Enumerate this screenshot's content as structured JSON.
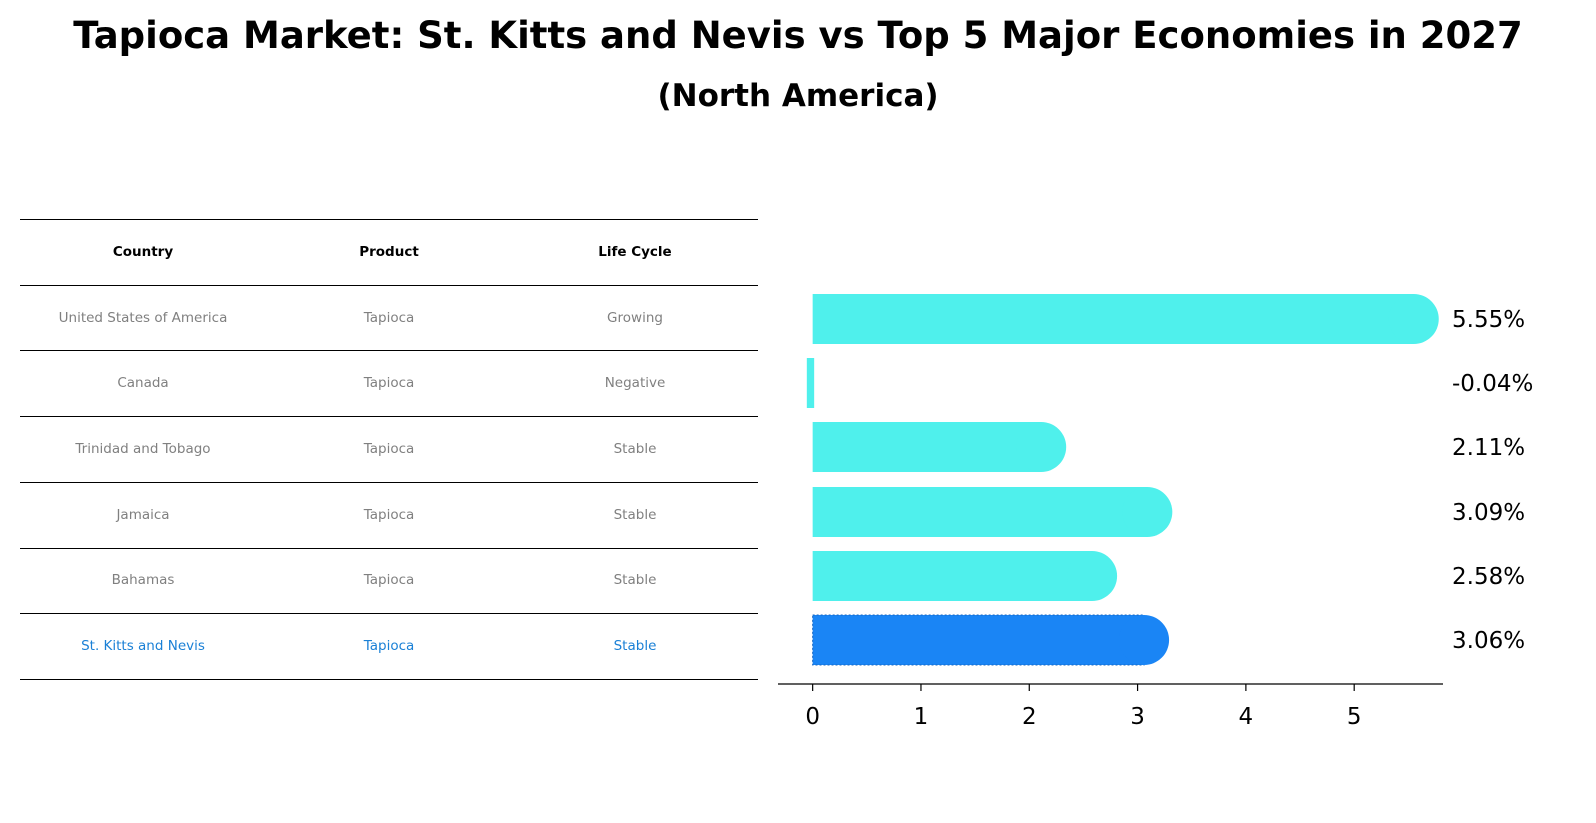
{
  "title": "Tapioca Market: St. Kitts and Nevis vs Top 5 Major Economies in 2027",
  "subtitle": "(North America)",
  "table": {
    "headers": [
      "Country",
      "Product",
      "Life Cycle"
    ],
    "rows": [
      [
        "United States of America",
        "Tapioca",
        "Growing"
      ],
      [
        "Canada",
        "Tapioca",
        "Negative"
      ],
      [
        "Trinidad and Tobago",
        "Tapioca",
        "Stable"
      ],
      [
        "Jamaica",
        "Tapioca",
        "Stable"
      ],
      [
        "Bahamas",
        "Tapioca",
        "Stable"
      ],
      [
        "St. Kitts and Nevis",
        "Tapioca",
        "Stable"
      ]
    ],
    "highlight_row": 5,
    "text_color": "#808080",
    "highlight_color": "#1a80d6"
  },
  "chart_data": {
    "type": "bar",
    "orientation": "horizontal",
    "categories": [
      "United States of America",
      "Canada",
      "Trinidad and Tobago",
      "Jamaica",
      "Bahamas",
      "St. Kitts and Nevis"
    ],
    "values": [
      5.55,
      -0.04,
      2.11,
      3.09,
      2.58,
      3.06
    ],
    "labels": [
      "5.55%",
      "-0.04%",
      "2.11%",
      "3.09%",
      "2.58%",
      "3.06%"
    ],
    "xticks": [
      0,
      1,
      2,
      3,
      4,
      5
    ],
    "xlim": [
      -0.32,
      5.82
    ],
    "bar_color": "#4ff0ec",
    "highlight_color": "#1a85f5",
    "highlight_index": 5
  }
}
